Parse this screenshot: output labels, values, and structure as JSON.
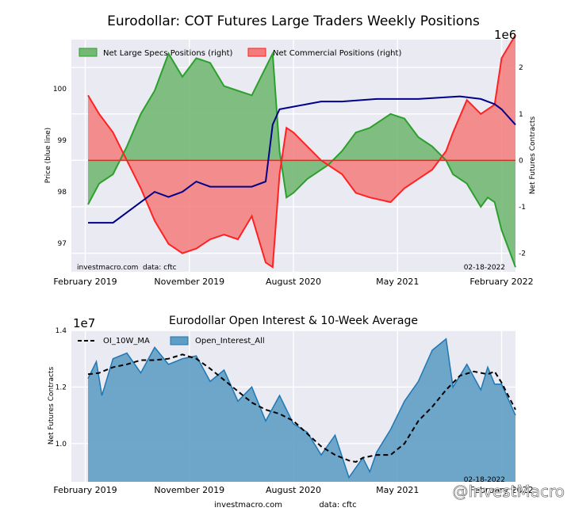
{
  "chart_data": [
    {
      "type": "area",
      "title": "Eurodollar: COT Futures Large Traders Weekly Positions",
      "ylabel_left": "Price (blue line)",
      "ylabel_right": "Net Futures Contracts",
      "right_axis_multiplier": "1e6",
      "date_label": "02-18-2022",
      "footer_left": "investmacro.com",
      "footer_right": "data: cftc",
      "x_tick_labels": [
        "February 2019",
        "November 2019",
        "August 2020",
        "May 2021",
        "February 2022"
      ],
      "x_range": [
        2019.0,
        2022.2
      ],
      "left_ylim": [
        96.45,
        100.95
      ],
      "left_ticks": [
        "97",
        "98",
        "99",
        "100"
      ],
      "right_ylim": [
        -2.4,
        2.6
      ],
      "right_ticks": [
        "-2",
        "-1",
        "0",
        "1",
        "2"
      ],
      "grid": true,
      "legend_placement": "top-left",
      "series": [
        {
          "name": "Net Large Specs Positions (right)",
          "color": "#2ca02c",
          "fill": "#74b874",
          "points": [
            [
              2019.12,
              -0.95
            ],
            [
              2019.2,
              -0.5
            ],
            [
              2019.3,
              -0.3
            ],
            [
              2019.4,
              0.3
            ],
            [
              2019.5,
              1.0
            ],
            [
              2019.6,
              1.5
            ],
            [
              2019.7,
              2.3
            ],
            [
              2019.8,
              1.8
            ],
            [
              2019.9,
              2.2
            ],
            [
              2020.0,
              2.1
            ],
            [
              2020.1,
              1.6
            ],
            [
              2020.2,
              1.5
            ],
            [
              2020.3,
              1.4
            ],
            [
              2020.4,
              2.0
            ],
            [
              2020.45,
              2.3
            ],
            [
              2020.5,
              0.2
            ],
            [
              2020.55,
              -0.8
            ],
            [
              2020.6,
              -0.7
            ],
            [
              2020.7,
              -0.4
            ],
            [
              2020.8,
              -0.2
            ],
            [
              2020.85,
              -0.1
            ],
            [
              2020.95,
              0.2
            ],
            [
              2021.05,
              0.6
            ],
            [
              2021.15,
              0.7
            ],
            [
              2021.3,
              1.0
            ],
            [
              2021.4,
              0.9
            ],
            [
              2021.5,
              0.5
            ],
            [
              2021.6,
              0.3
            ],
            [
              2021.7,
              0.0
            ],
            [
              2021.75,
              -0.3
            ],
            [
              2021.85,
              -0.5
            ],
            [
              2021.95,
              -1.0
            ],
            [
              2022.0,
              -0.8
            ],
            [
              2022.05,
              -0.9
            ],
            [
              2022.1,
              -1.5
            ],
            [
              2022.2,
              -2.3
            ]
          ]
        },
        {
          "name": "Net Commercial Positions (right)",
          "color": "#ff2222",
          "fill": "#f47b7b",
          "points": [
            [
              2019.12,
              1.4
            ],
            [
              2019.2,
              1.0
            ],
            [
              2019.3,
              0.6
            ],
            [
              2019.4,
              0.0
            ],
            [
              2019.5,
              -0.6
            ],
            [
              2019.6,
              -1.3
            ],
            [
              2019.7,
              -1.8
            ],
            [
              2019.8,
              -2.0
            ],
            [
              2019.9,
              -1.9
            ],
            [
              2020.0,
              -1.7
            ],
            [
              2020.1,
              -1.6
            ],
            [
              2020.2,
              -1.7
            ],
            [
              2020.3,
              -1.2
            ],
            [
              2020.4,
              -2.2
            ],
            [
              2020.45,
              -2.3
            ],
            [
              2020.5,
              -0.3
            ],
            [
              2020.55,
              0.7
            ],
            [
              2020.6,
              0.6
            ],
            [
              2020.7,
              0.3
            ],
            [
              2020.8,
              0.0
            ],
            [
              2020.85,
              -0.1
            ],
            [
              2020.95,
              -0.3
            ],
            [
              2021.05,
              -0.7
            ],
            [
              2021.15,
              -0.8
            ],
            [
              2021.3,
              -0.9
            ],
            [
              2021.4,
              -0.6
            ],
            [
              2021.5,
              -0.4
            ],
            [
              2021.6,
              -0.2
            ],
            [
              2021.7,
              0.2
            ],
            [
              2021.75,
              0.6
            ],
            [
              2021.85,
              1.3
            ],
            [
              2021.95,
              1.0
            ],
            [
              2022.0,
              1.1
            ],
            [
              2022.05,
              1.2
            ],
            [
              2022.1,
              2.2
            ],
            [
              2022.2,
              2.7
            ]
          ]
        },
        {
          "name": "Price",
          "color": "#00008b",
          "axis": "left",
          "points": [
            [
              2019.12,
              97.4
            ],
            [
              2019.3,
              97.4
            ],
            [
              2019.5,
              97.8
            ],
            [
              2019.6,
              98.0
            ],
            [
              2019.7,
              97.9
            ],
            [
              2019.8,
              98.0
            ],
            [
              2019.9,
              98.2
            ],
            [
              2020.0,
              98.1
            ],
            [
              2020.1,
              98.1
            ],
            [
              2020.2,
              98.1
            ],
            [
              2020.3,
              98.1
            ],
            [
              2020.4,
              98.2
            ],
            [
              2020.45,
              99.3
            ],
            [
              2020.5,
              99.6
            ],
            [
              2020.6,
              99.65
            ],
            [
              2020.7,
              99.7
            ],
            [
              2020.8,
              99.75
            ],
            [
              2020.95,
              99.75
            ],
            [
              2021.2,
              99.8
            ],
            [
              2021.5,
              99.8
            ],
            [
              2021.8,
              99.85
            ],
            [
              2021.95,
              99.8
            ],
            [
              2022.05,
              99.7
            ],
            [
              2022.1,
              99.6
            ],
            [
              2022.2,
              99.3
            ]
          ]
        }
      ]
    },
    {
      "type": "area",
      "title": "Eurodollar Open Interest & 10-Week Average",
      "ylabel": "Net Futures Contracts",
      "y_multiplier": "1e7",
      "date_label": "02-18-2022",
      "footer_left": "investmacro.com",
      "footer_right": "data: cftc",
      "x_tick_labels": [
        "February 2019",
        "November 2019",
        "August 2020",
        "May 2021",
        "February 2022"
      ],
      "x_range": [
        2019.0,
        2022.2
      ],
      "ylim": [
        0.865,
        1.4
      ],
      "y_ticks": [
        "1.0",
        "1.2",
        "1.4"
      ],
      "grid": true,
      "legend_placement": "top-left",
      "series": [
        {
          "name": "OI_10W_MA",
          "color": "#000000",
          "style": "dashed",
          "points": [
            [
              2019.12,
              1.245
            ],
            [
              2019.2,
              1.25
            ],
            [
              2019.3,
              1.27
            ],
            [
              2019.4,
              1.28
            ],
            [
              2019.5,
              1.295
            ],
            [
              2019.6,
              1.295
            ],
            [
              2019.7,
              1.3
            ],
            [
              2019.8,
              1.315
            ],
            [
              2019.9,
              1.3
            ],
            [
              2020.0,
              1.265
            ],
            [
              2020.1,
              1.225
            ],
            [
              2020.2,
              1.185
            ],
            [
              2020.3,
              1.145
            ],
            [
              2020.4,
              1.12
            ],
            [
              2020.5,
              1.105
            ],
            [
              2020.6,
              1.08
            ],
            [
              2020.7,
              1.035
            ],
            [
              2020.8,
              0.99
            ],
            [
              2020.9,
              0.96
            ],
            [
              2021.0,
              0.94
            ],
            [
              2021.05,
              0.935
            ],
            [
              2021.1,
              0.95
            ],
            [
              2021.2,
              0.96
            ],
            [
              2021.3,
              0.96
            ],
            [
              2021.4,
              1.0
            ],
            [
              2021.5,
              1.08
            ],
            [
              2021.6,
              1.13
            ],
            [
              2021.7,
              1.19
            ],
            [
              2021.8,
              1.24
            ],
            [
              2021.9,
              1.255
            ],
            [
              2022.0,
              1.245
            ],
            [
              2022.05,
              1.255
            ],
            [
              2022.1,
              1.215
            ],
            [
              2022.2,
              1.12
            ]
          ]
        },
        {
          "name": "Open_Interest_All",
          "color": "#1f77b4",
          "fill": "#5f9ec4",
          "points": [
            [
              2019.12,
              1.23
            ],
            [
              2019.18,
              1.29
            ],
            [
              2019.22,
              1.17
            ],
            [
              2019.3,
              1.3
            ],
            [
              2019.4,
              1.32
            ],
            [
              2019.5,
              1.25
            ],
            [
              2019.6,
              1.34
            ],
            [
              2019.7,
              1.28
            ],
            [
              2019.8,
              1.3
            ],
            [
              2019.9,
              1.31
            ],
            [
              2020.0,
              1.22
            ],
            [
              2020.1,
              1.26
            ],
            [
              2020.2,
              1.15
            ],
            [
              2020.3,
              1.2
            ],
            [
              2020.4,
              1.08
            ],
            [
              2020.5,
              1.17
            ],
            [
              2020.6,
              1.07
            ],
            [
              2020.7,
              1.04
            ],
            [
              2020.8,
              0.96
            ],
            [
              2020.9,
              1.03
            ],
            [
              2021.0,
              0.88
            ],
            [
              2021.1,
              0.95
            ],
            [
              2021.15,
              0.9
            ],
            [
              2021.2,
              0.97
            ],
            [
              2021.3,
              1.05
            ],
            [
              2021.4,
              1.15
            ],
            [
              2021.5,
              1.22
            ],
            [
              2021.6,
              1.33
            ],
            [
              2021.7,
              1.37
            ],
            [
              2021.75,
              1.2
            ],
            [
              2021.85,
              1.28
            ],
            [
              2021.95,
              1.19
            ],
            [
              2022.0,
              1.27
            ],
            [
              2022.05,
              1.21
            ],
            [
              2022.1,
              1.21
            ],
            [
              2022.2,
              1.1
            ]
          ]
        }
      ]
    }
  ],
  "watermark": "@InvestMacro"
}
